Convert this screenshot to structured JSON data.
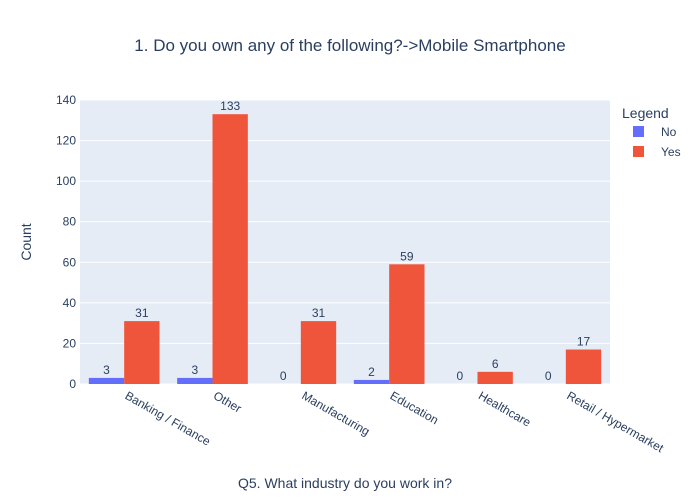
{
  "chart_data": {
    "type": "bar",
    "title": "1. Do you own any of the following?->Mobile Smartphone",
    "xlabel": "Q5. What industry do you work in?",
    "ylabel": "Count",
    "categories": [
      "Banking / Finance",
      "Other",
      "Manufacturing",
      "Education",
      "Healthcare",
      "Retail / Hypermarket"
    ],
    "series": [
      {
        "name": "No",
        "color": "#636efa",
        "values": [
          3,
          3,
          0,
          2,
          0,
          0
        ]
      },
      {
        "name": "Yes",
        "color": "#ef553b",
        "values": [
          31,
          133,
          31,
          59,
          6,
          17
        ]
      }
    ],
    "ylim": [
      0,
      140
    ],
    "yticks": [
      0,
      20,
      40,
      60,
      80,
      100,
      120,
      140
    ],
    "grid": true,
    "legend": {
      "title": "Legend",
      "placement": "top-right"
    },
    "colors": {
      "plot_background": "#e5ecf6",
      "grid": "#ffffff",
      "text": "#2a3f5f"
    }
  }
}
